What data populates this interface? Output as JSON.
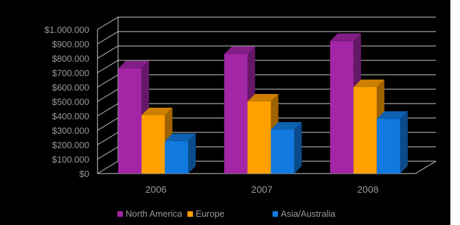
{
  "chart_data": {
    "type": "bar",
    "title": "",
    "xlabel": "",
    "ylabel": "",
    "categories": [
      "2006",
      "2007",
      "2008"
    ],
    "series": [
      {
        "name": "North America",
        "values": [
          730000,
          830000,
          920000
        ],
        "color": "#a326a6"
      },
      {
        "name": "Europe",
        "values": [
          405000,
          500000,
          600000
        ],
        "color": "#ff9f00"
      },
      {
        "name": "Asia/Australia",
        "values": [
          225000,
          305000,
          380000
        ],
        "color": "#1279e0"
      }
    ],
    "ylim": [
      0,
      1000000
    ],
    "y_ticks": [
      "$0",
      "$100.000",
      "$200.000",
      "$300.000",
      "$400.000",
      "$500.000",
      "$600.000",
      "$700.000",
      "$800.000",
      "$900.000",
      "$1.000.000"
    ],
    "grid": true,
    "three_d": true,
    "legend_position": "bottom"
  }
}
